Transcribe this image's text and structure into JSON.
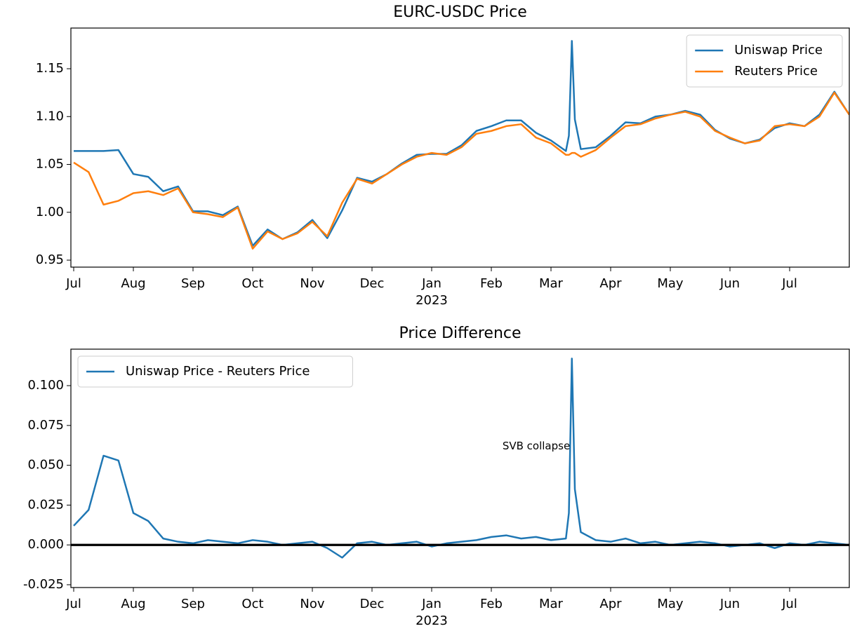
{
  "chart_data": [
    {
      "type": "line",
      "title": "EURC-USDC Price",
      "x": [
        0,
        0.25,
        0.5,
        0.75,
        1,
        1.25,
        1.5,
        1.75,
        2,
        2.25,
        2.5,
        2.75,
        3,
        3.25,
        3.5,
        3.75,
        4,
        4.25,
        4.5,
        4.75,
        5,
        5.25,
        5.5,
        5.75,
        6,
        6.25,
        6.5,
        6.75,
        7,
        7.25,
        7.5,
        7.75,
        8,
        8.25,
        8.3,
        8.35,
        8.4,
        8.5,
        8.75,
        9,
        9.25,
        9.5,
        9.75,
        10,
        10.25,
        10.5,
        10.75,
        11,
        11.25,
        11.5,
        11.75,
        12,
        12.25,
        12.5,
        12.75,
        13
      ],
      "series": [
        {
          "name": "Uniswap Price",
          "color": "#1f77b4",
          "values": [
            1.064,
            1.064,
            1.064,
            1.065,
            1.04,
            1.037,
            1.022,
            1.027,
            1.001,
            1.001,
            0.997,
            1.006,
            0.965,
            0.982,
            0.972,
            0.979,
            0.992,
            0.973,
            1.002,
            1.036,
            1.032,
            1.04,
            1.051,
            1.06,
            1.061,
            1.061,
            1.07,
            1.085,
            1.09,
            1.096,
            1.096,
            1.083,
            1.075,
            1.064,
            1.08,
            1.179,
            1.097,
            1.066,
            1.068,
            1.08,
            1.094,
            1.093,
            1.1,
            1.102,
            1.106,
            1.102,
            1.086,
            1.077,
            1.072,
            1.076,
            1.088,
            1.093,
            1.09,
            1.102,
            1.126,
            1.102
          ]
        },
        {
          "name": "Reuters Price",
          "color": "#ff7f0e",
          "values": [
            1.052,
            1.042,
            1.008,
            1.012,
            1.02,
            1.022,
            1.018,
            1.025,
            1.0,
            0.998,
            0.995,
            1.005,
            0.962,
            0.98,
            0.972,
            0.978,
            0.99,
            0.975,
            1.01,
            1.035,
            1.03,
            1.04,
            1.05,
            1.058,
            1.062,
            1.06,
            1.068,
            1.082,
            1.085,
            1.09,
            1.092,
            1.078,
            1.072,
            1.06,
            1.06,
            1.062,
            1.062,
            1.058,
            1.065,
            1.078,
            1.09,
            1.092,
            1.098,
            1.102,
            1.105,
            1.1,
            1.085,
            1.078,
            1.072,
            1.075,
            1.09,
            1.092,
            1.09,
            1.1,
            1.125,
            1.102
          ]
        }
      ],
      "xlim": [
        -0.047,
        13.0
      ],
      "xticks": [
        {
          "value": 0,
          "label": "Jul"
        },
        {
          "value": 1,
          "label": "Aug"
        },
        {
          "value": 2,
          "label": "Sep"
        },
        {
          "value": 3,
          "label": "Oct"
        },
        {
          "value": 4,
          "label": "Nov"
        },
        {
          "value": 5,
          "label": "Dec"
        },
        {
          "value": 6,
          "label": "Jan",
          "sublabel": "2023"
        },
        {
          "value": 7,
          "label": "Feb"
        },
        {
          "value": 8,
          "label": "Mar"
        },
        {
          "value": 9,
          "label": "Apr"
        },
        {
          "value": 10,
          "label": "May"
        },
        {
          "value": 11,
          "label": "Jun"
        },
        {
          "value": 12,
          "label": "Jul"
        }
      ],
      "ylim": [
        0.9427,
        1.1925
      ],
      "yticks": [
        0.95,
        {
          "value": 1,
          "label": "1.00"
        },
        1.05,
        {
          "value": 1.1,
          "label": "1.10"
        },
        1.15
      ],
      "legend": "upper right"
    },
    {
      "type": "line",
      "title": "Price Difference",
      "x": [
        0,
        0.25,
        0.5,
        0.75,
        1,
        1.25,
        1.5,
        1.75,
        2,
        2.25,
        2.5,
        2.75,
        3,
        3.25,
        3.5,
        3.75,
        4,
        4.25,
        4.5,
        4.75,
        5,
        5.25,
        5.5,
        5.75,
        6,
        6.25,
        6.5,
        6.75,
        7,
        7.25,
        7.5,
        7.75,
        8,
        8.25,
        8.3,
        8.35,
        8.4,
        8.5,
        8.75,
        9,
        9.25,
        9.5,
        9.75,
        10,
        10.25,
        10.5,
        10.75,
        11,
        11.25,
        11.5,
        11.75,
        12,
        12.25,
        12.5,
        12.75,
        13
      ],
      "series": [
        {
          "name": "Uniswap Price - Reuters Price",
          "color": "#1f77b4",
          "values": [
            0.012,
            0.022,
            0.056,
            0.053,
            0.02,
            0.015,
            0.004,
            0.002,
            0.001,
            0.003,
            0.002,
            0.001,
            0.003,
            0.002,
            0.0,
            0.001,
            0.002,
            -0.002,
            -0.008,
            0.001,
            0.002,
            0.0,
            0.001,
            0.002,
            -0.001,
            0.001,
            0.002,
            0.003,
            0.005,
            0.006,
            0.004,
            0.005,
            0.003,
            0.004,
            0.02,
            0.117,
            0.035,
            0.008,
            0.003,
            0.002,
            0.004,
            0.001,
            0.002,
            0.0,
            0.001,
            0.002,
            0.001,
            -0.001,
            0.0,
            0.001,
            -0.002,
            0.001,
            0.0,
            0.002,
            0.001,
            0.0
          ]
        }
      ],
      "xlim": [
        -0.047,
        13.0
      ],
      "xticks": [
        {
          "value": 0,
          "label": "Jul"
        },
        {
          "value": 1,
          "label": "Aug"
        },
        {
          "value": 2,
          "label": "Sep"
        },
        {
          "value": 3,
          "label": "Oct"
        },
        {
          "value": 4,
          "label": "Nov"
        },
        {
          "value": 5,
          "label": "Dec"
        },
        {
          "value": 6,
          "label": "Jan",
          "sublabel": "2023"
        },
        {
          "value": 7,
          "label": "Feb"
        },
        {
          "value": 8,
          "label": "Mar"
        },
        {
          "value": 9,
          "label": "Apr"
        },
        {
          "value": 10,
          "label": "May"
        },
        {
          "value": 11,
          "label": "Jun"
        },
        {
          "value": 12,
          "label": "Jul"
        }
      ],
      "ylim": [
        -0.02676,
        0.1229
      ],
      "yticks": [
        -0.025,
        {
          "value": 0,
          "label": "0.000"
        },
        0.025,
        {
          "value": 0.05,
          "label": "0.050"
        },
        0.075,
        {
          "value": 0.1,
          "label": "0.100"
        }
      ],
      "zero_line": true,
      "legend": "upper left",
      "annotations": [
        {
          "text": "SVB collapse",
          "x": 8.32,
          "y": 0.062
        }
      ]
    }
  ]
}
